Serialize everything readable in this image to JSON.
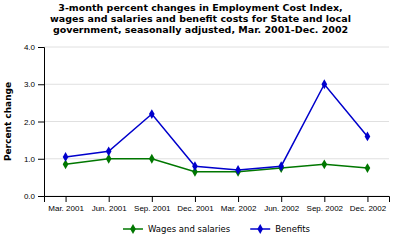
{
  "chart_data": {
    "type": "line",
    "title": "3-month percent changes in Employment Cost Index,\nwages and salaries and benefit costs for State and local\ngovernment, seasonally adjusted, Mar. 2001-Dec. 2002",
    "y_label": "Percent change",
    "categories": [
      "Mar. 2001",
      "Jun. 2001",
      "Sep. 2001",
      "Dec. 2001",
      "Mar. 2002",
      "Jun. 2002",
      "Sep. 2002",
      "Dec. 2002"
    ],
    "series": [
      {
        "name": "Wages and salaries",
        "color": "#007700",
        "marker": "diamond",
        "values": [
          0.85,
          1.0,
          1.0,
          0.65,
          0.65,
          0.75,
          0.85,
          0.75
        ]
      },
      {
        "name": "Benefits",
        "color": "#0000cc",
        "marker": "diamond",
        "values": [
          1.05,
          1.2,
          2.2,
          0.8,
          0.7,
          0.8,
          3.0,
          1.6
        ]
      }
    ],
    "ylim": [
      0.0,
      4.0
    ],
    "yticks": [
      {
        "value": 0.0,
        "label": "0.0"
      },
      {
        "value": 1.0,
        "label": "1.0"
      },
      {
        "value": 2.0,
        "label": "2.0"
      },
      {
        "value": 3.0,
        "label": "3.0"
      },
      {
        "value": 4.0,
        "label": "4.0"
      }
    ],
    "grid": true,
    "legend": "bottom"
  }
}
